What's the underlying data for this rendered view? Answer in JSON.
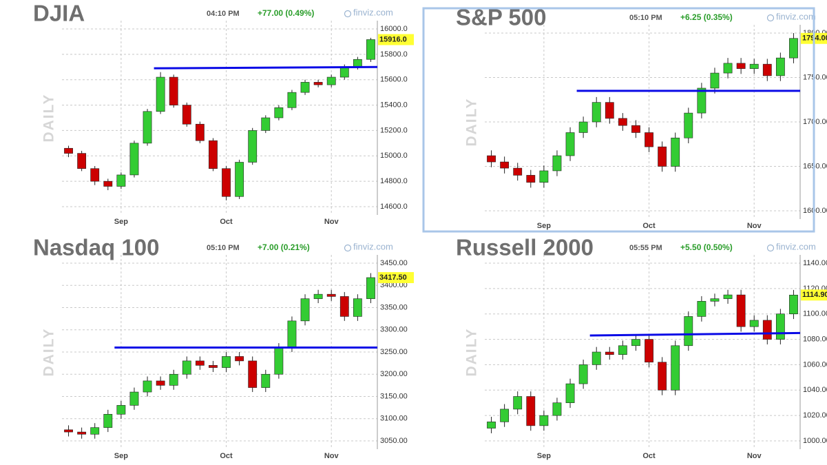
{
  "chart_data": [
    {
      "type": "candlestick",
      "title": "DJIA",
      "time": "04:10 PM",
      "change": "+77.00 (0.49%)",
      "source": "finviz.com",
      "watermark": "DAILY",
      "categories": [
        null,
        null,
        null,
        null,
        "Sep",
        null,
        null,
        null,
        null,
        null,
        null,
        null,
        "Oct",
        null,
        null,
        null,
        null,
        null,
        null,
        null,
        "Nov",
        null,
        null,
        null
      ],
      "open": [
        15060,
        15020,
        14900,
        14800,
        14760,
        14850,
        15100,
        15350,
        15620,
        15400,
        15250,
        15120,
        14900,
        14680,
        14950,
        15200,
        15300,
        15380,
        15500,
        15580,
        15560,
        15620,
        15700,
        15760
      ],
      "high": [
        15080,
        15040,
        14920,
        14820,
        14870,
        15120,
        15370,
        15660,
        15640,
        15420,
        15270,
        15140,
        14920,
        14970,
        15220,
        15320,
        15400,
        15520,
        15600,
        15600,
        15640,
        15720,
        15780,
        15930
      ],
      "low": [
        14990,
        14880,
        14770,
        14730,
        14740,
        14830,
        15080,
        15330,
        15380,
        15230,
        15100,
        14880,
        14650,
        14660,
        14930,
        15180,
        15280,
        15360,
        15480,
        15540,
        15540,
        15600,
        15680,
        15740
      ],
      "close": [
        15020,
        14900,
        14800,
        14760,
        14850,
        15100,
        15350,
        15620,
        15400,
        15250,
        15120,
        14900,
        14680,
        14950,
        15200,
        15300,
        15380,
        15500,
        15580,
        15560,
        15620,
        15700,
        15760,
        15916
      ],
      "ylim": [
        14600,
        16000
      ],
      "yticks": [
        {
          "value": 14600,
          "label": "14600.0"
        },
        {
          "value": 14800,
          "label": "14800.0"
        },
        {
          "value": 15000,
          "label": "15000.0"
        },
        {
          "value": 15200,
          "label": "15200.0"
        },
        {
          "value": 15400,
          "label": "15400.0"
        },
        {
          "value": 15600,
          "label": "15600.0"
        },
        {
          "value": 15800,
          "label": "15800.0"
        },
        {
          "value": 16000,
          "label": "16000.0"
        }
      ],
      "last": {
        "value": 15916,
        "label": "15916.0"
      },
      "trendline": {
        "x": [
          7,
          23
        ],
        "y": [
          15690,
          15700
        ],
        "color": "#0a0ae6"
      },
      "up_color": "#33cc33",
      "down_color": "#cc0000",
      "grid": true
    },
    {
      "type": "candlestick",
      "title": "S&P 500",
      "time": "05:10 PM",
      "change": "+6.25 (0.35%)",
      "source": "finviz.com",
      "watermark": "DAILY",
      "categories": [
        null,
        null,
        null,
        null,
        "Sep",
        null,
        null,
        null,
        null,
        null,
        null,
        null,
        "Oct",
        null,
        null,
        null,
        null,
        null,
        null,
        null,
        "Nov",
        null,
        null,
        null
      ],
      "open": [
        1662,
        1655,
        1648,
        1640,
        1632,
        1645,
        1662,
        1688,
        1700,
        1722,
        1704,
        1696,
        1688,
        1672,
        1650,
        1682,
        1710,
        1738,
        1755,
        1766,
        1760,
        1765,
        1752,
        1772
      ],
      "high": [
        1668,
        1661,
        1654,
        1646,
        1651,
        1668,
        1694,
        1706,
        1728,
        1728,
        1710,
        1702,
        1694,
        1678,
        1688,
        1716,
        1744,
        1761,
        1772,
        1772,
        1771,
        1771,
        1778,
        1800
      ],
      "low": [
        1649,
        1642,
        1634,
        1626,
        1626,
        1639,
        1656,
        1682,
        1694,
        1698,
        1690,
        1682,
        1666,
        1644,
        1644,
        1676,
        1704,
        1732,
        1749,
        1754,
        1754,
        1746,
        1746,
        1766
      ],
      "close": [
        1655,
        1648,
        1640,
        1632,
        1645,
        1662,
        1688,
        1700,
        1722,
        1704,
        1696,
        1688,
        1672,
        1650,
        1682,
        1710,
        1738,
        1755,
        1766,
        1760,
        1765,
        1752,
        1772,
        1794
      ],
      "ylim": [
        1600,
        1800
      ],
      "yticks": [
        {
          "value": 1600,
          "label": "1600.00"
        },
        {
          "value": 1650,
          "label": "1650.00"
        },
        {
          "value": 1700,
          "label": "1700.00"
        },
        {
          "value": 1750,
          "label": "1750.00"
        },
        {
          "value": 1800,
          "label": "1800.00"
        }
      ],
      "last": {
        "value": 1794,
        "label": "1794.00"
      },
      "trendline": {
        "x": [
          7,
          23
        ],
        "y": [
          1735,
          1735
        ],
        "color": "#0a0ae6"
      },
      "up_color": "#33cc33",
      "down_color": "#cc0000",
      "grid": true
    },
    {
      "type": "candlestick",
      "title": "Nasdaq 100",
      "time": "05:10 PM",
      "change": "+7.00 (0.21%)",
      "source": "finviz.com",
      "watermark": "DAILY",
      "categories": [
        null,
        null,
        null,
        null,
        "Sep",
        null,
        null,
        null,
        null,
        null,
        null,
        null,
        "Oct",
        null,
        null,
        null,
        null,
        null,
        null,
        null,
        "Nov",
        null,
        null,
        null
      ],
      "open": [
        3075,
        3070,
        3065,
        3080,
        3110,
        3130,
        3160,
        3185,
        3175,
        3200,
        3230,
        3220,
        3215,
        3240,
        3230,
        3170,
        3200,
        3260,
        3320,
        3370,
        3380,
        3375,
        3330,
        3370
      ],
      "high": [
        3085,
        3080,
        3090,
        3120,
        3140,
        3170,
        3195,
        3195,
        3210,
        3240,
        3240,
        3230,
        3250,
        3250,
        3240,
        3210,
        3270,
        3330,
        3380,
        3390,
        3390,
        3385,
        3380,
        3427.5
      ],
      "low": [
        3060,
        3055,
        3055,
        3070,
        3100,
        3120,
        3150,
        3165,
        3165,
        3190,
        3210,
        3205,
        3205,
        3220,
        3160,
        3160,
        3190,
        3250,
        3310,
        3360,
        3365,
        3320,
        3320,
        3360
      ],
      "close": [
        3070,
        3065,
        3080,
        3110,
        3130,
        3160,
        3185,
        3175,
        3200,
        3230,
        3220,
        3215,
        3240,
        3230,
        3170,
        3200,
        3260,
        3320,
        3370,
        3380,
        3375,
        3330,
        3370,
        3417.5
      ],
      "ylim": [
        3050,
        3450
      ],
      "yticks": [
        {
          "value": 3050,
          "label": "3050.00"
        },
        {
          "value": 3100,
          "label": "3100.00"
        },
        {
          "value": 3150,
          "label": "3150.00"
        },
        {
          "value": 3200,
          "label": "3200.00"
        },
        {
          "value": 3250,
          "label": "3250.00"
        },
        {
          "value": 3300,
          "label": "3300.00"
        },
        {
          "value": 3350,
          "label": "3350.00"
        },
        {
          "value": 3400,
          "label": "3400.00"
        },
        {
          "value": 3450,
          "label": "3450.00"
        }
      ],
      "last": {
        "value": 3417.5,
        "label": "3417.50"
      },
      "trendline": {
        "x": [
          4,
          23
        ],
        "y": [
          3260,
          3260
        ],
        "color": "#0a0ae6"
      },
      "up_color": "#33cc33",
      "down_color": "#cc0000",
      "grid": true
    },
    {
      "type": "candlestick",
      "title": "Russell 2000",
      "time": "05:55 PM",
      "change": "+5.50 (0.50%)",
      "source": "finviz.com",
      "watermark": "DAILY",
      "categories": [
        null,
        null,
        null,
        null,
        "Sep",
        null,
        null,
        null,
        null,
        null,
        null,
        null,
        "Oct",
        null,
        null,
        null,
        null,
        null,
        null,
        null,
        "Nov",
        null,
        null,
        null
      ],
      "open": [
        1010,
        1015,
        1025,
        1035,
        1012,
        1020,
        1030,
        1045,
        1060,
        1070,
        1068,
        1075,
        1080,
        1062,
        1040,
        1075,
        1098,
        1110,
        1112,
        1115,
        1090,
        1095,
        1080,
        1100
      ],
      "high": [
        1019,
        1029,
        1039,
        1039,
        1024,
        1034,
        1049,
        1064,
        1074,
        1074,
        1079,
        1084,
        1084,
        1066,
        1079,
        1102,
        1114,
        1116,
        1119,
        1119,
        1099,
        1099,
        1104,
        1118.9
      ],
      "low": [
        1006,
        1011,
        1021,
        1008,
        1008,
        1016,
        1026,
        1041,
        1056,
        1064,
        1064,
        1071,
        1058,
        1036,
        1036,
        1071,
        1094,
        1106,
        1108,
        1086,
        1086,
        1076,
        1076,
        1096
      ],
      "close": [
        1015,
        1025,
        1035,
        1012,
        1020,
        1030,
        1045,
        1060,
        1070,
        1068,
        1075,
        1080,
        1062,
        1040,
        1075,
        1098,
        1110,
        1112,
        1115,
        1090,
        1095,
        1080,
        1100,
        1114.9
      ],
      "ylim": [
        1000,
        1140
      ],
      "yticks": [
        {
          "value": 1000,
          "label": "1000.00"
        },
        {
          "value": 1020,
          "label": "1020.00"
        },
        {
          "value": 1040,
          "label": "1040.00"
        },
        {
          "value": 1060,
          "label": "1060.00"
        },
        {
          "value": 1080,
          "label": "1080.00"
        },
        {
          "value": 1100,
          "label": "1100.00"
        },
        {
          "value": 1120,
          "label": "1120.00"
        },
        {
          "value": 1140,
          "label": "1140.00"
        }
      ],
      "last": {
        "value": 1114.9,
        "label": "1114.90"
      },
      "trendline": {
        "x": [
          8,
          23
        ],
        "y": [
          1083,
          1085
        ],
        "color": "#0a0ae6"
      },
      "up_color": "#33cc33",
      "down_color": "#cc0000",
      "grid": true
    }
  ]
}
